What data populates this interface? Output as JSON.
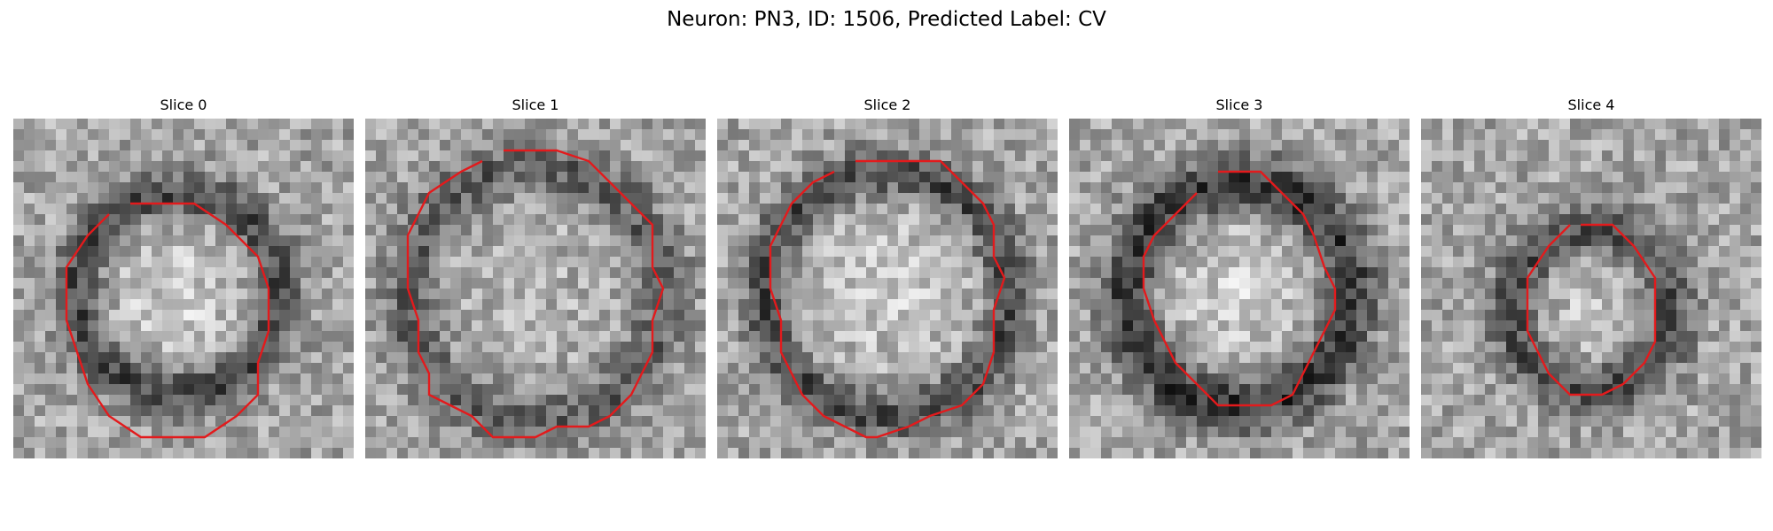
{
  "figure": {
    "title": "Neuron: PN3, ID: 1506, Predicted Label: CV"
  },
  "panels": [
    {
      "title": "Slice 0"
    },
    {
      "title": "Slice 1"
    },
    {
      "title": "Slice 2"
    },
    {
      "title": "Slice 3"
    },
    {
      "title": "Slice 4"
    }
  ],
  "colors": {
    "contour": "#e31a1c",
    "background": "#ffffff"
  }
}
